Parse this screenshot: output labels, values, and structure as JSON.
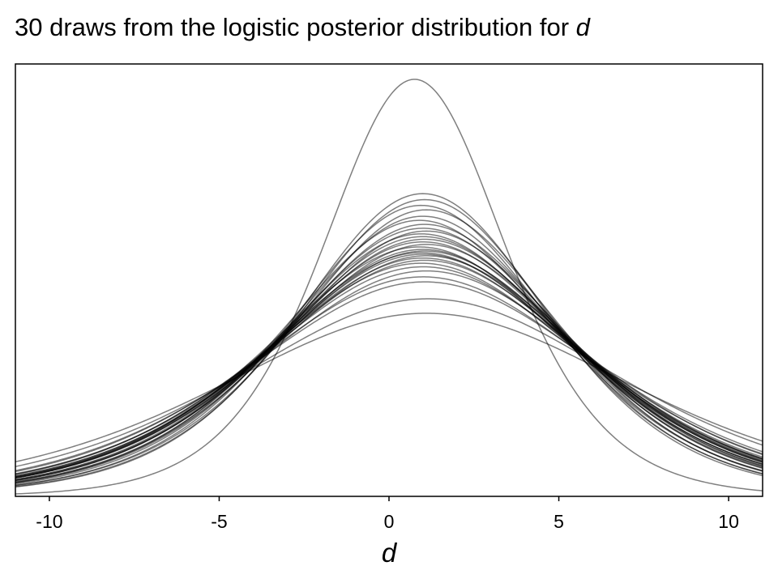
{
  "chart_data": {
    "type": "line",
    "title": {
      "main": "30 draws from the logistic posterior distribution for ",
      "variable": "d"
    },
    "xlabel": "d",
    "ylabel": "",
    "xlim": [
      -11,
      11
    ],
    "ylim": [
      0,
      0.144
    ],
    "x_ticks": [
      -10,
      -5,
      0,
      5,
      10
    ],
    "x_tick_labels": [
      "-10",
      "-5",
      "0",
      "5",
      "10"
    ],
    "y_ticks_shown": false,
    "grid": false,
    "legend": "none",
    "line_color": "#000000",
    "line_opacity": 0.5,
    "curve_function": "logistic_pdf",
    "series": [
      {
        "location": 0.75,
        "scale": 1.8
      },
      {
        "location": 1.0,
        "scale": 2.48
      },
      {
        "location": 1.05,
        "scale": 2.53
      },
      {
        "location": 0.95,
        "scale": 2.58
      },
      {
        "location": 1.1,
        "scale": 2.62
      },
      {
        "location": 1.0,
        "scale": 2.68
      },
      {
        "location": 0.9,
        "scale": 2.72
      },
      {
        "location": 1.05,
        "scale": 2.76
      },
      {
        "location": 1.0,
        "scale": 2.8
      },
      {
        "location": 1.1,
        "scale": 2.83
      },
      {
        "location": 0.95,
        "scale": 2.86
      },
      {
        "location": 1.0,
        "scale": 2.89
      },
      {
        "location": 1.05,
        "scale": 2.92
      },
      {
        "location": 1.0,
        "scale": 2.95
      },
      {
        "location": 1.1,
        "scale": 2.98
      },
      {
        "location": 0.9,
        "scale": 3.01
      },
      {
        "location": 1.0,
        "scale": 3.04
      },
      {
        "location": 1.05,
        "scale": 3.06
      },
      {
        "location": 0.95,
        "scale": 3.08
      },
      {
        "location": 1.0,
        "scale": 3.1
      },
      {
        "location": 1.1,
        "scale": 3.12
      },
      {
        "location": 1.0,
        "scale": 3.15
      },
      {
        "location": 1.05,
        "scale": 3.18
      },
      {
        "location": 0.95,
        "scale": 3.22
      },
      {
        "location": 1.0,
        "scale": 3.27
      },
      {
        "location": 1.1,
        "scale": 3.33
      },
      {
        "location": 1.0,
        "scale": 3.42
      },
      {
        "location": 1.05,
        "scale": 3.5
      },
      {
        "location": 1.15,
        "scale": 3.8
      },
      {
        "location": 1.1,
        "scale": 4.1
      }
    ]
  }
}
